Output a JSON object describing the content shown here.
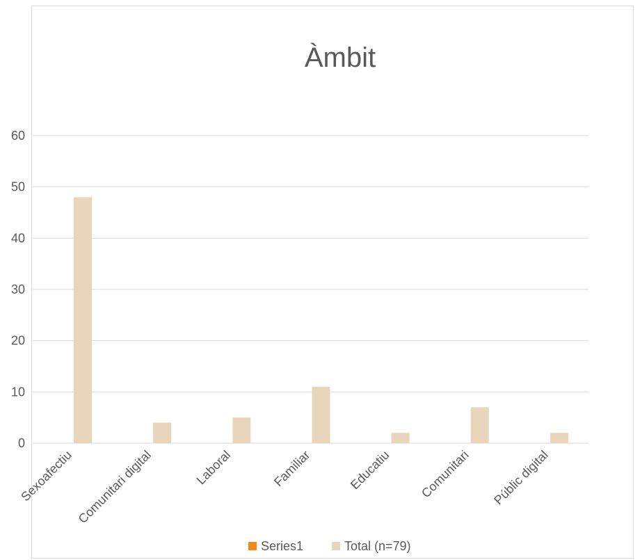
{
  "chart_data": {
    "type": "bar",
    "title": "Àmbit",
    "categories": [
      "Sexoafectiu",
      "Comunitari digital",
      "Laboral",
      "Familiar",
      "Educatiu",
      "Comunitari",
      "Públic digital"
    ],
    "series": [
      {
        "name": "Series1",
        "color": "#f08a1c",
        "values": [
          0,
          0,
          0,
          0,
          0,
          0,
          0
        ]
      },
      {
        "name": "Total (n=79)",
        "color": "#e8d5bc",
        "values": [
          48,
          4,
          5,
          11,
          2,
          7,
          2
        ]
      }
    ],
    "ylim": [
      0,
      60
    ],
    "yticks": [
      0,
      10,
      20,
      30,
      40,
      50,
      60
    ],
    "grid": true,
    "legend_position": "bottom",
    "gridline_color": "#d9d9d9",
    "xlabel": "",
    "ylabel": ""
  }
}
